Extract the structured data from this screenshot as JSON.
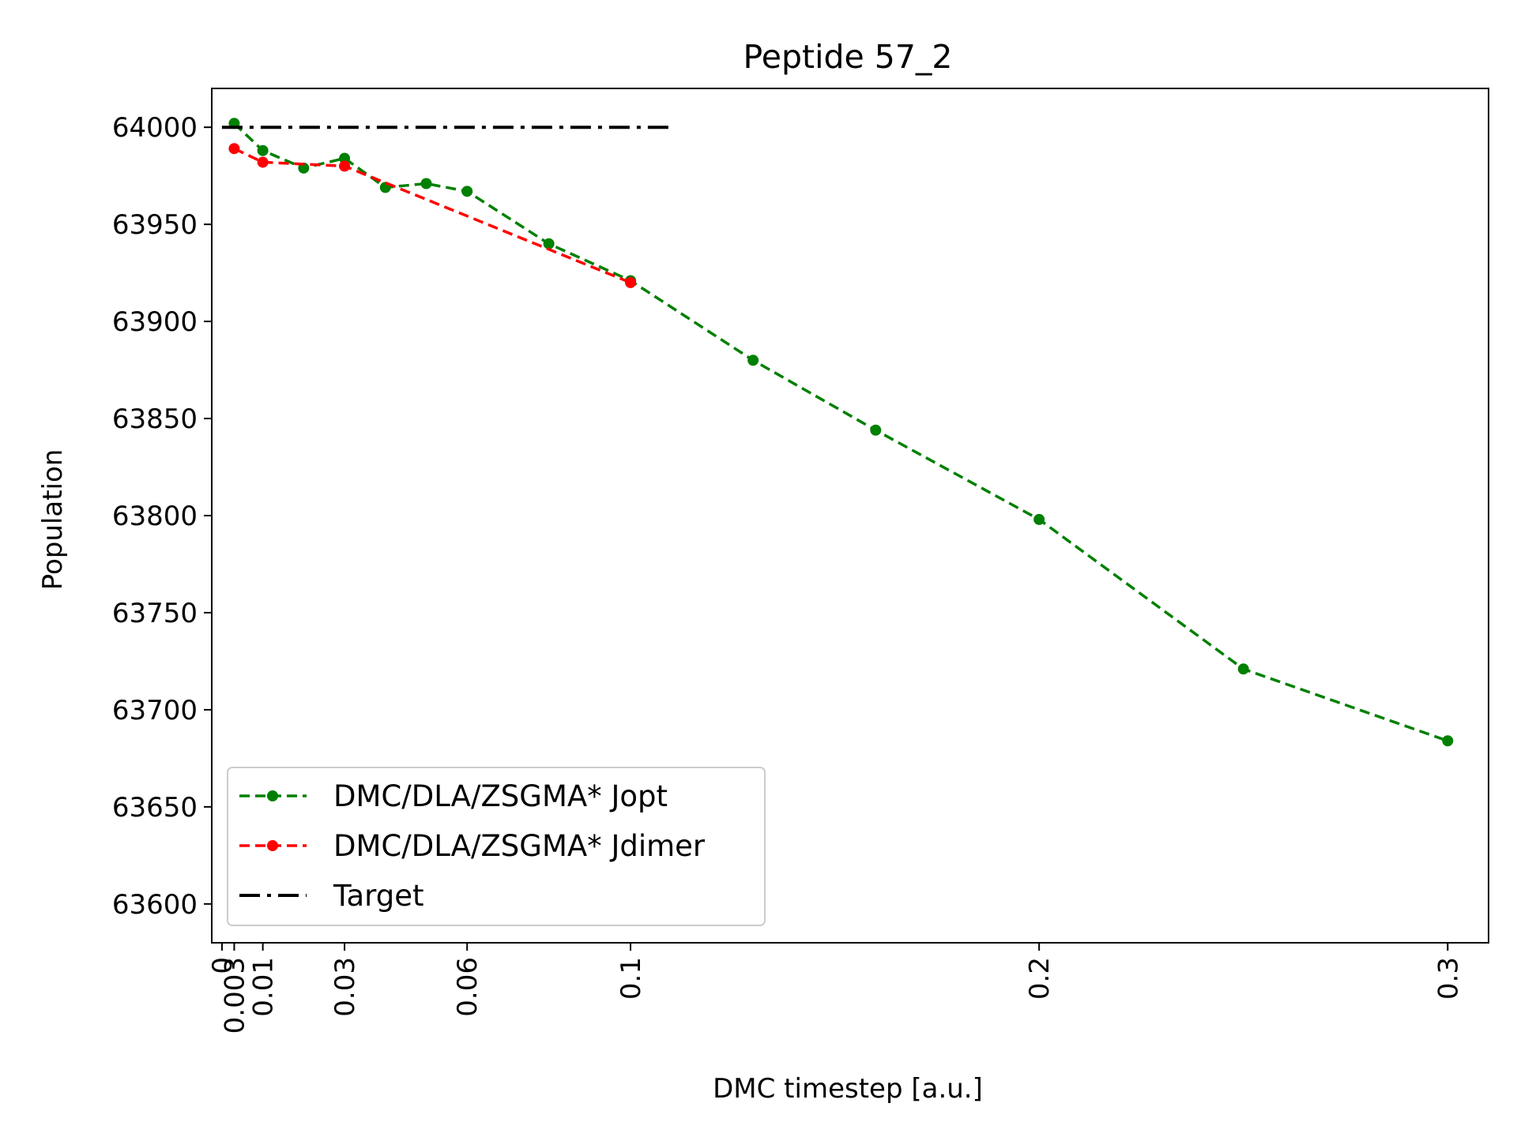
{
  "chart_data": {
    "type": "line",
    "title": "Peptide 57_2",
    "xlabel": "DMC timestep [a.u.]",
    "ylabel": "Population",
    "xlim": [
      -0.0025,
      0.31
    ],
    "ylim": [
      63580,
      64020
    ],
    "x_ticks": [
      {
        "value": 0,
        "label": "0"
      },
      {
        "value": 0.003,
        "label": "0.003"
      },
      {
        "value": 0.01,
        "label": "0.01"
      },
      {
        "value": 0.03,
        "label": "0.03"
      },
      {
        "value": 0.06,
        "label": "0.06"
      },
      {
        "value": 0.1,
        "label": "0.1"
      },
      {
        "value": 0.2,
        "label": "0.2"
      },
      {
        "value": 0.3,
        "label": "0.3"
      }
    ],
    "y_ticks": [
      {
        "value": 63600,
        "label": "63600"
      },
      {
        "value": 63650,
        "label": "63650"
      },
      {
        "value": 63700,
        "label": "63700"
      },
      {
        "value": 63750,
        "label": "63750"
      },
      {
        "value": 63800,
        "label": "63800"
      },
      {
        "value": 63850,
        "label": "63850"
      },
      {
        "value": 63900,
        "label": "63900"
      },
      {
        "value": 63950,
        "label": "63950"
      },
      {
        "value": 64000,
        "label": "64000"
      }
    ],
    "grid": false,
    "legend_position": "lower-left",
    "series": [
      {
        "name": "DMC/DLA/ZSGMA* Jopt",
        "color": "#008000",
        "style": "dashed-with-dots",
        "points": [
          [
            0.003,
            64002
          ],
          [
            0.01,
            63988
          ],
          [
            0.02,
            63979
          ],
          [
            0.03,
            63984
          ],
          [
            0.04,
            63969
          ],
          [
            0.05,
            63971
          ],
          [
            0.06,
            63967
          ],
          [
            0.08,
            63940
          ],
          [
            0.1,
            63921
          ],
          [
            0.13,
            63880
          ],
          [
            0.16,
            63844
          ],
          [
            0.2,
            63798
          ],
          [
            0.25,
            63721
          ],
          [
            0.3,
            63684
          ]
        ]
      },
      {
        "name": "DMC/DLA/ZSGMA* Jdimer",
        "color": "#ff0000",
        "style": "dashed-with-dots",
        "points": [
          [
            0.003,
            63989
          ],
          [
            0.01,
            63982
          ],
          [
            0.03,
            63980
          ],
          [
            0.1,
            63920
          ]
        ]
      },
      {
        "name": "Target",
        "color": "#000000",
        "style": "dash-dot",
        "points": [
          [
            0,
            64000
          ],
          [
            0.11,
            64000
          ]
        ]
      }
    ]
  }
}
